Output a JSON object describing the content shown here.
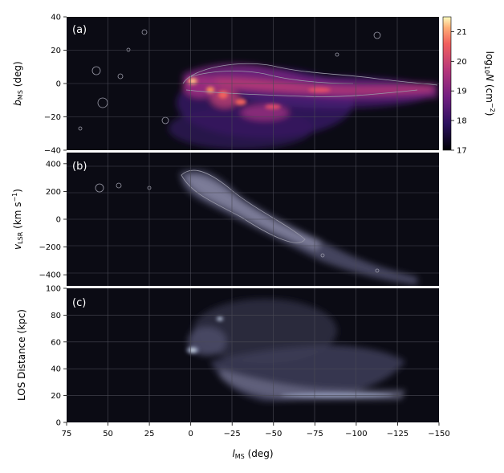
{
  "chart_data": [
    {
      "type": "heatmap",
      "panel_label": "(a)",
      "ylabel_main": "b",
      "ylabel_sub": "MS",
      "ylabel_unit": " (deg)",
      "xlim": [
        75,
        -150
      ],
      "ylim": [
        -40,
        40
      ],
      "yticks": [
        "40",
        "20",
        "0",
        "−20",
        "−40"
      ],
      "ytick_values": [
        40,
        20,
        0,
        -20,
        -40
      ],
      "colormap": "magma",
      "grid": true,
      "colorbar": {
        "label_pre": "log",
        "label_sub": "10",
        "label_var": "N",
        "label_unit_pre": " (cm",
        "label_sup": "−2",
        "label_unit_post": ")",
        "range": [
          17,
          21.5
        ],
        "ticks": [
          "21",
          "20",
          "19",
          "18",
          "17"
        ],
        "tick_values": [
          21,
          20,
          19,
          18,
          17
        ]
      }
    },
    {
      "type": "heatmap",
      "panel_label": "(b)",
      "ylabel_main": "v",
      "ylabel_sub": "LSR",
      "ylabel_unit_pre": " (km s",
      "ylabel_sup": "−1",
      "ylabel_unit_post": ")",
      "xlim": [
        75,
        -150
      ],
      "ylim": [
        -480,
        480
      ],
      "yticks": [
        "400",
        "200",
        "0",
        "−200",
        "−400"
      ],
      "ytick_values": [
        400,
        200,
        0,
        -200,
        -400
      ],
      "grid": true
    },
    {
      "type": "heatmap",
      "panel_label": "(c)",
      "ylabel": "LOS Distance (kpc)",
      "xlim": [
        75,
        -150
      ],
      "ylim": [
        0,
        100
      ],
      "yticks": [
        "100",
        "80",
        "60",
        "40",
        "20",
        "0"
      ],
      "ytick_values": [
        100,
        80,
        60,
        40,
        20,
        0
      ],
      "xticks": [
        "75",
        "50",
        "25",
        "0",
        "−25",
        "−50",
        "−75",
        "−100",
        "−125",
        "−150"
      ],
      "xtick_values": [
        75,
        50,
        25,
        0,
        -25,
        -50,
        -75,
        -100,
        -125,
        -150
      ],
      "xlabel_main": "l",
      "xlabel_sub": "MS",
      "xlabel_unit": " (deg)",
      "grid": true
    }
  ],
  "colors": {
    "panel_background": "#0b0b14",
    "contour": "#9a9aa8",
    "grid": "#4a4a55",
    "magma_low": "#000004",
    "magma_mid": "#b5367a",
    "magma_high": "#fcfdbf",
    "bone_low": "#2a2a3a",
    "bone_high": "#e8f0ff"
  }
}
